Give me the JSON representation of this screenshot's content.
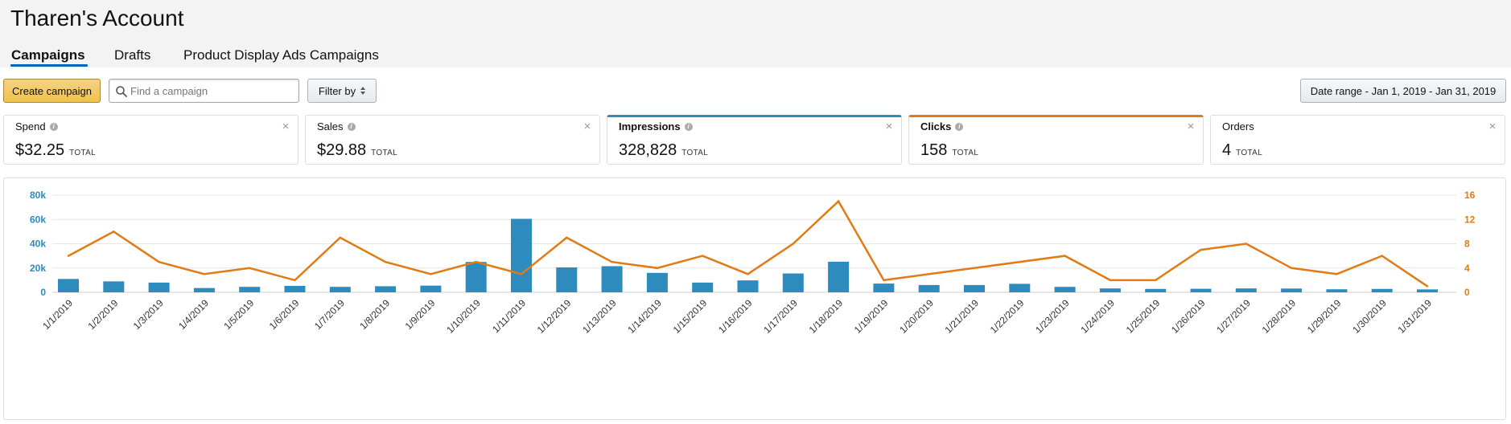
{
  "account": {
    "title": "Tharen's Account"
  },
  "tabs": [
    {
      "label": "Campaigns",
      "active": true
    },
    {
      "label": "Drafts",
      "active": false
    },
    {
      "label": "Product Display Ads Campaigns",
      "active": false
    }
  ],
  "toolbar": {
    "create_label": "Create campaign",
    "search_placeholder": "Find a campaign",
    "search_value": "",
    "filter_label": "Filter by",
    "date_range_label": "Date range - Jan 1, 2019 - Jan 31, 2019"
  },
  "total_label": "TOTAL",
  "metrics": [
    {
      "label": "Spend",
      "value": "$32.25",
      "info": true,
      "selected": "none"
    },
    {
      "label": "Sales",
      "value": "$29.88",
      "info": true,
      "selected": "none"
    },
    {
      "label": "Impressions",
      "value": "328,828",
      "info": true,
      "selected": "blue"
    },
    {
      "label": "Clicks",
      "value": "158",
      "info": true,
      "selected": "orange"
    },
    {
      "label": "Orders",
      "value": "4",
      "info": false,
      "selected": "none"
    }
  ],
  "colors": {
    "impressions": "#2d8cbd",
    "clicks": "#e07b15",
    "button_primary": "#f0c14b",
    "tab_underline": "#0066c0"
  },
  "chart_data": {
    "type": "bar+line",
    "categories": [
      "1/1/2019",
      "1/2/2019",
      "1/3/2019",
      "1/4/2019",
      "1/5/2019",
      "1/6/2019",
      "1/7/2019",
      "1/8/2019",
      "1/9/2019",
      "1/10/2019",
      "1/11/2019",
      "1/12/2019",
      "1/13/2019",
      "1/14/2019",
      "1/15/2019",
      "1/16/2019",
      "1/17/2019",
      "1/18/2019",
      "1/19/2019",
      "1/20/2019",
      "1/21/2019",
      "1/22/2019",
      "1/23/2019",
      "1/24/2019",
      "1/25/2019",
      "1/26/2019",
      "1/27/2019",
      "1/28/2019",
      "1/29/2019",
      "1/30/2019",
      "1/31/2019"
    ],
    "series": [
      {
        "name": "Impressions",
        "type": "bar",
        "axis": "left",
        "color": "#2d8cbd",
        "values": [
          11000,
          9000,
          8000,
          3500,
          4500,
          5300,
          4500,
          5000,
          5500,
          25000,
          60500,
          20500,
          21500,
          16000,
          8000,
          9800,
          15500,
          25200,
          7200,
          6000,
          6000,
          7000,
          4500,
          3200,
          2800,
          2900,
          3200,
          3100,
          2500,
          2800,
          2400
        ]
      },
      {
        "name": "Clicks",
        "type": "line",
        "axis": "right",
        "color": "#e07b15",
        "values": [
          6,
          10,
          5,
          3,
          4,
          2,
          9,
          5,
          3,
          5,
          3,
          9,
          5,
          4,
          6,
          3,
          8,
          15,
          2,
          null,
          null,
          null,
          6,
          2,
          2,
          7,
          8,
          4,
          3,
          6,
          1
        ]
      }
    ],
    "left_axis": {
      "ticks": [
        "0",
        "20k",
        "40k",
        "60k",
        "80k"
      ],
      "min": 0,
      "max": 80000
    },
    "right_axis": {
      "ticks": [
        "0",
        "4",
        "8",
        "12",
        "16"
      ],
      "min": 0,
      "max": 16
    },
    "grid": true
  }
}
